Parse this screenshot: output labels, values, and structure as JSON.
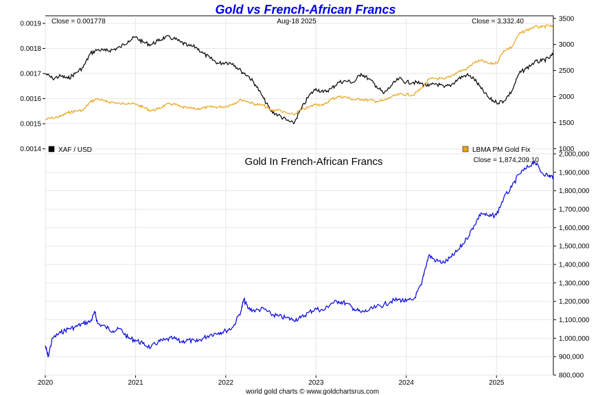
{
  "chart_data": [
    {
      "type": "line",
      "title": "Gold vs French-African Francs",
      "date_label": "Aug-18  2025",
      "left_close_label": "Close = 0.001778",
      "right_close_label": "Close = 3,332.40",
      "x_ticks": [
        "2020",
        "2021",
        "2022",
        "2023",
        "2024",
        "2025"
      ],
      "xlim": [
        "2020-01",
        "2025-08"
      ],
      "ylim_left": [
        0.00138,
        0.00193
      ],
      "yticks_left": [
        "0.0014",
        "0.0015",
        "0.0016",
        "0.0017",
        "0.0018",
        "0.0019"
      ],
      "ylim_right": [
        900,
        3550
      ],
      "yticks_right": [
        "1000",
        "1500",
        "2000",
        "2500",
        "3000",
        "3500"
      ],
      "legend": [
        {
          "label": "XAF / USD",
          "color": "#000000",
          "position": "bottom-left"
        },
        {
          "label": "LBMA PM Gold Fix",
          "color": "#e8a317",
          "position": "bottom-right"
        }
      ],
      "series": [
        {
          "name": "XAF / USD",
          "axis": "left",
          "color": "#000000",
          "x": [
            2020.0,
            2020.08,
            2020.17,
            2020.25,
            2020.33,
            2020.42,
            2020.5,
            2020.58,
            2020.67,
            2020.75,
            2020.83,
            2020.92,
            2021.0,
            2021.08,
            2021.17,
            2021.25,
            2021.33,
            2021.42,
            2021.5,
            2021.58,
            2021.67,
            2021.75,
            2021.83,
            2021.92,
            2022.0,
            2022.08,
            2022.17,
            2022.25,
            2022.33,
            2022.42,
            2022.5,
            2022.58,
            2022.67,
            2022.75,
            2022.83,
            2022.92,
            2023.0,
            2023.08,
            2023.17,
            2023.25,
            2023.33,
            2023.42,
            2023.5,
            2023.58,
            2023.67,
            2023.75,
            2023.83,
            2023.92,
            2024.0,
            2024.08,
            2024.17,
            2024.25,
            2024.33,
            2024.42,
            2024.5,
            2024.58,
            2024.67,
            2024.75,
            2024.83,
            2024.92,
            2025.0,
            2025.08,
            2025.17,
            2025.25,
            2025.33,
            2025.42,
            2025.5,
            2025.58,
            2025.63
          ],
          "y": [
            0.0017,
            0.00168,
            0.00169,
            0.00168,
            0.0017,
            0.001725,
            0.00178,
            0.001795,
            0.00179,
            0.001795,
            0.001805,
            0.00183,
            0.001845,
            0.001825,
            0.001815,
            0.00183,
            0.001845,
            0.00184,
            0.001825,
            0.00181,
            0.001805,
            0.00178,
            0.00176,
            0.00174,
            0.001745,
            0.00174,
            0.00171,
            0.00169,
            0.001655,
            0.0016,
            0.00155,
            0.001535,
            0.001515,
            0.0015,
            0.001555,
            0.00161,
            0.00164,
            0.001625,
            0.00164,
            0.001665,
            0.00167,
            0.001665,
            0.0017,
            0.00168,
            0.00165,
            0.00162,
            0.00165,
            0.00168,
            0.001665,
            0.001665,
            0.00166,
            0.00165,
            0.00166,
            0.001645,
            0.001655,
            0.00168,
            0.001695,
            0.00168,
            0.00164,
            0.0016,
            0.001585,
            0.00159,
            0.00163,
            0.0017,
            0.00172,
            0.001745,
            0.00175,
            0.00176,
            0.001778
          ]
        },
        {
          "name": "LBMA PM Gold Fix",
          "axis": "right",
          "color": "#e8a317",
          "x": [
            2020.0,
            2020.08,
            2020.17,
            2020.25,
            2020.33,
            2020.42,
            2020.5,
            2020.58,
            2020.67,
            2020.75,
            2020.83,
            2020.92,
            2021.0,
            2021.08,
            2021.17,
            2021.25,
            2021.33,
            2021.42,
            2021.5,
            2021.58,
            2021.67,
            2021.75,
            2021.83,
            2021.92,
            2022.0,
            2022.08,
            2022.17,
            2022.25,
            2022.33,
            2022.42,
            2022.5,
            2022.58,
            2022.67,
            2022.75,
            2022.83,
            2022.92,
            2023.0,
            2023.08,
            2023.17,
            2023.25,
            2023.33,
            2023.42,
            2023.5,
            2023.58,
            2023.67,
            2023.75,
            2023.83,
            2023.92,
            2024.0,
            2024.08,
            2024.17,
            2024.25,
            2024.33,
            2024.42,
            2024.5,
            2024.58,
            2024.67,
            2024.75,
            2024.83,
            2024.92,
            2025.0,
            2025.08,
            2025.17,
            2025.25,
            2025.33,
            2025.42,
            2025.5,
            2025.58,
            2025.63
          ],
          "y": [
            1560,
            1590,
            1620,
            1690,
            1720,
            1740,
            1900,
            1960,
            1900,
            1890,
            1860,
            1880,
            1850,
            1800,
            1730,
            1760,
            1840,
            1860,
            1800,
            1780,
            1760,
            1780,
            1800,
            1800,
            1810,
            1860,
            1940,
            1900,
            1850,
            1830,
            1730,
            1750,
            1680,
            1650,
            1740,
            1790,
            1860,
            1830,
            1950,
            2000,
            1990,
            1940,
            1950,
            1930,
            1910,
            1920,
            1990,
            2040,
            2040,
            2030,
            2160,
            2330,
            2350,
            2330,
            2400,
            2480,
            2530,
            2650,
            2690,
            2630,
            2640,
            2880,
            2950,
            3200,
            3270,
            3340,
            3330,
            3360,
            3332
          ]
        }
      ]
    },
    {
      "type": "line",
      "title": "Gold In French-African Francs",
      "close_label": "Close = 1,874,209.10",
      "x_ticks": [
        "2020",
        "2021",
        "2022",
        "2023",
        "2024",
        "2025"
      ],
      "xlim": [
        "2020-01",
        "2025-08"
      ],
      "ylim": [
        800000,
        2000000
      ],
      "yticks": [
        "800,000",
        "900,000",
        "1,000,000",
        "1,100,000",
        "1,200,000",
        "1,300,000",
        "1,400,000",
        "1,500,000",
        "1,600,000",
        "1,700,000",
        "1,800,000",
        "1,900,000",
        "2,000,000"
      ],
      "series": [
        {
          "color": "#0000dd",
          "x": [
            2020.0,
            2020.03,
            2020.08,
            2020.17,
            2020.25,
            2020.33,
            2020.42,
            2020.5,
            2020.55,
            2020.58,
            2020.67,
            2020.75,
            2020.83,
            2020.92,
            2021.0,
            2021.08,
            2021.17,
            2021.25,
            2021.33,
            2021.42,
            2021.5,
            2021.58,
            2021.67,
            2021.75,
            2021.83,
            2021.92,
            2022.0,
            2022.08,
            2022.17,
            2022.2,
            2022.25,
            2022.33,
            2022.42,
            2022.5,
            2022.58,
            2022.67,
            2022.75,
            2022.83,
            2022.92,
            2023.0,
            2023.08,
            2023.17,
            2023.25,
            2023.33,
            2023.42,
            2023.5,
            2023.58,
            2023.67,
            2023.75,
            2023.83,
            2023.92,
            2024.0,
            2024.08,
            2024.17,
            2024.2,
            2024.25,
            2024.33,
            2024.42,
            2024.5,
            2024.58,
            2024.67,
            2024.75,
            2024.83,
            2024.92,
            2025.0,
            2025.08,
            2025.17,
            2025.25,
            2025.33,
            2025.42,
            2025.5,
            2025.58,
            2025.63
          ],
          "y": [
            960000,
            900000,
            1000000,
            1030000,
            1050000,
            1060000,
            1080000,
            1090000,
            1140000,
            1080000,
            1060000,
            1040000,
            1050000,
            1000000,
            990000,
            970000,
            950000,
            980000,
            990000,
            1000000,
            980000,
            990000,
            980000,
            1000000,
            1020000,
            1030000,
            1040000,
            1060000,
            1150000,
            1210000,
            1160000,
            1150000,
            1160000,
            1130000,
            1120000,
            1110000,
            1100000,
            1110000,
            1140000,
            1160000,
            1150000,
            1190000,
            1200000,
            1190000,
            1160000,
            1140000,
            1150000,
            1170000,
            1180000,
            1200000,
            1210000,
            1200000,
            1210000,
            1290000,
            1360000,
            1450000,
            1420000,
            1410000,
            1440000,
            1480000,
            1540000,
            1610000,
            1680000,
            1660000,
            1670000,
            1760000,
            1820000,
            1890000,
            1920000,
            1960000,
            1900000,
            1880000,
            1874209
          ]
        }
      ]
    }
  ],
  "footer": "world gold charts © www.goldchartsrus.com"
}
